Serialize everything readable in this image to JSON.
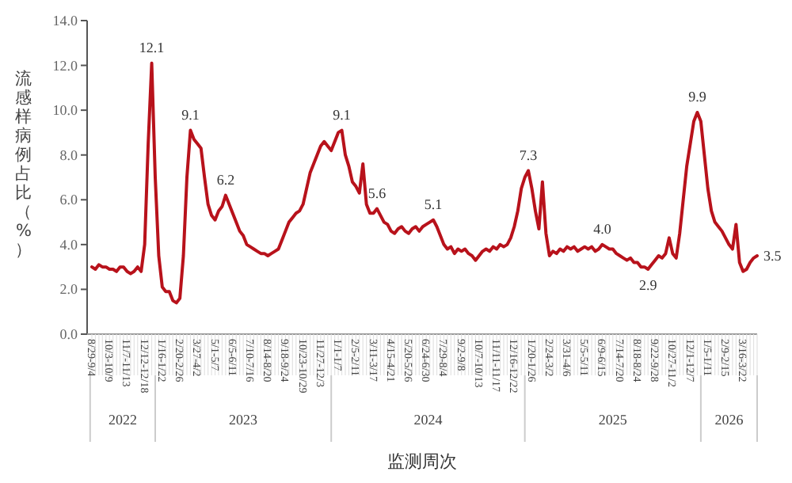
{
  "chart_data": {
    "type": "line",
    "ylabel": "流感样病例占比（%）",
    "xlabel": "监测周次",
    "categories": [
      "8/29-9/4",
      null,
      null,
      null,
      null,
      "10/3-10/9",
      null,
      null,
      null,
      null,
      "11/7-11/13",
      null,
      null,
      null,
      null,
      "12/12-12/18",
      null,
      null,
      null,
      null,
      "1/16-1/22",
      null,
      null,
      null,
      null,
      "2/20-2/26",
      null,
      null,
      null,
      null,
      "3/27-4/2",
      null,
      null,
      null,
      null,
      "5/1-5/7",
      null,
      null,
      null,
      null,
      "6/5-6/11",
      null,
      null,
      null,
      null,
      "7/10-7/16",
      null,
      null,
      null,
      null,
      "8/14-8/20",
      null,
      null,
      null,
      null,
      "9/18-9/24",
      null,
      null,
      null,
      null,
      "10/23-10/29",
      null,
      null,
      null,
      null,
      "11/27-12/3",
      null,
      null,
      null,
      null,
      "1/1-1/7",
      null,
      null,
      null,
      null,
      "2/5-2/11",
      null,
      null,
      null,
      null,
      "3/11-3/17",
      null,
      null,
      null,
      null,
      "4/15-4/21",
      null,
      null,
      null,
      null,
      "5/20-5/26",
      null,
      null,
      null,
      null,
      "6/24-6/30",
      null,
      null,
      null,
      null,
      "7/29-8/4",
      null,
      null,
      null,
      null,
      "9/2-9/8",
      null,
      null,
      null,
      null,
      "10/7-10/13",
      null,
      null,
      null,
      null,
      "11/11-11/17",
      null,
      null,
      null,
      null,
      "12/16-12/22",
      null,
      null,
      null,
      null,
      "1/20-1/26",
      null,
      null,
      null,
      null,
      "2/24-3/2",
      null,
      null,
      null,
      null,
      "3/31-4/6",
      null,
      null,
      null,
      null,
      "5/5-5/11",
      null,
      null,
      null,
      null,
      "6/9-6/15",
      null,
      null,
      null,
      null,
      "7/14-7/20",
      null,
      null,
      null,
      null,
      "8/18-8/24",
      null,
      null,
      null,
      null,
      "9/22-9/28",
      null,
      null,
      null,
      null,
      "10/27-11/2",
      null,
      null,
      null,
      null,
      "12/1-12/7",
      null,
      null,
      null,
      null,
      "1/5-1/11",
      null,
      null,
      null,
      null,
      "2/9-2/15",
      null,
      null,
      null,
      null,
      "3/16-3/22",
      null,
      null,
      null,
      null
    ],
    "series": [
      {
        "color": "#b8121b",
        "values": [
          3.0,
          2.9,
          3.1,
          3.0,
          3.0,
          2.9,
          2.9,
          2.8,
          3.0,
          3.0,
          2.8,
          2.7,
          2.8,
          3.0,
          2.8,
          4.0,
          8.5,
          12.1,
          7.0,
          3.5,
          2.1,
          1.9,
          1.9,
          1.5,
          1.4,
          1.6,
          3.5,
          7.0,
          9.1,
          8.7,
          8.5,
          8.3,
          7.0,
          5.8,
          5.3,
          5.1,
          5.5,
          5.7,
          6.2,
          5.8,
          5.4,
          5.0,
          4.6,
          4.4,
          4.0,
          3.9,
          3.8,
          3.7,
          3.6,
          3.6,
          3.5,
          3.6,
          3.7,
          3.8,
          4.2,
          4.6,
          5.0,
          5.2,
          5.4,
          5.5,
          5.8,
          6.5,
          7.2,
          7.6,
          8.0,
          8.4,
          8.6,
          8.4,
          8.2,
          8.6,
          9.0,
          9.1,
          8.0,
          7.5,
          6.8,
          6.6,
          6.3,
          7.6,
          5.8,
          5.4,
          5.4,
          5.6,
          5.3,
          5.0,
          4.9,
          4.6,
          4.5,
          4.7,
          4.8,
          4.6,
          4.5,
          4.7,
          4.8,
          4.6,
          4.8,
          4.9,
          5.0,
          5.1,
          4.8,
          4.4,
          4.0,
          3.8,
          3.9,
          3.6,
          3.8,
          3.7,
          3.8,
          3.6,
          3.5,
          3.3,
          3.5,
          3.7,
          3.8,
          3.7,
          3.9,
          3.8,
          4.0,
          3.9,
          4.0,
          4.3,
          4.8,
          5.5,
          6.5,
          7.0,
          7.3,
          6.5,
          5.5,
          4.7,
          6.8,
          4.5,
          3.5,
          3.7,
          3.6,
          3.8,
          3.7,
          3.9,
          3.8,
          3.9,
          3.7,
          3.8,
          3.9,
          3.8,
          3.9,
          3.7,
          3.8,
          4.0,
          3.9,
          3.8,
          3.8,
          3.6,
          3.5,
          3.4,
          3.3,
          3.4,
          3.2,
          3.2,
          3.0,
          3.0,
          2.9,
          3.1,
          3.3,
          3.5,
          3.4,
          3.6,
          4.3,
          3.6,
          3.4,
          4.5,
          6.0,
          7.5,
          8.5,
          9.5,
          9.9,
          9.5,
          8.0,
          6.5,
          5.5,
          5.0,
          4.8,
          4.6,
          4.3,
          4.0,
          3.8,
          4.9,
          3.2,
          2.8,
          2.9,
          3.2,
          3.4,
          3.5
        ],
        "value_labels": [
          null,
          null,
          null,
          null,
          null,
          null,
          null,
          null,
          null,
          null,
          null,
          null,
          null,
          null,
          null,
          null,
          null,
          "12.1",
          null,
          null,
          null,
          null,
          null,
          null,
          null,
          null,
          null,
          null,
          "9.1",
          null,
          null,
          null,
          null,
          null,
          null,
          null,
          null,
          null,
          "6.2",
          null,
          null,
          null,
          null,
          null,
          null,
          null,
          null,
          null,
          null,
          null,
          null,
          null,
          null,
          null,
          null,
          null,
          null,
          null,
          null,
          null,
          null,
          null,
          null,
          null,
          null,
          null,
          null,
          null,
          null,
          null,
          null,
          "9.1",
          null,
          null,
          null,
          null,
          null,
          null,
          null,
          null,
          null,
          "5.6",
          null,
          null,
          null,
          null,
          null,
          null,
          null,
          null,
          null,
          null,
          null,
          null,
          null,
          null,
          null,
          "5.1",
          null,
          null,
          null,
          null,
          null,
          null,
          null,
          null,
          null,
          null,
          null,
          null,
          null,
          null,
          null,
          null,
          null,
          null,
          null,
          null,
          null,
          null,
          null,
          null,
          null,
          null,
          "7.3",
          null,
          null,
          null,
          null,
          null,
          null,
          null,
          null,
          null,
          null,
          null,
          null,
          null,
          null,
          null,
          null,
          null,
          null,
          null,
          null,
          "4.0",
          null,
          null,
          null,
          null,
          null,
          null,
          null,
          null,
          null,
          null,
          null,
          null,
          "2.9",
          null,
          null,
          null,
          null,
          null,
          null,
          null,
          null,
          null,
          null,
          null,
          null,
          null,
          "9.9",
          null,
          null,
          null,
          null,
          null,
          null,
          null,
          null,
          null,
          null,
          null,
          null,
          null,
          null,
          null,
          null,
          "3.5"
        ]
      }
    ],
    "ylim": [
      0,
      14
    ],
    "yticks": [
      {
        "value": 0,
        "label": "0.0"
      },
      {
        "value": 2,
        "label": "2.0"
      },
      {
        "value": 4,
        "label": "4.0"
      },
      {
        "value": 6,
        "label": "6.0"
      },
      {
        "value": 8,
        "label": "8.0"
      },
      {
        "value": 10,
        "label": "10.0"
      },
      {
        "value": 12,
        "label": "12.0"
      },
      {
        "value": 14,
        "label": "14.0"
      }
    ],
    "grid": false,
    "marker": "none",
    "line_style": "solid",
    "annotations": [
      "2022",
      "2023",
      "2024",
      "2025",
      "2026"
    ]
  }
}
